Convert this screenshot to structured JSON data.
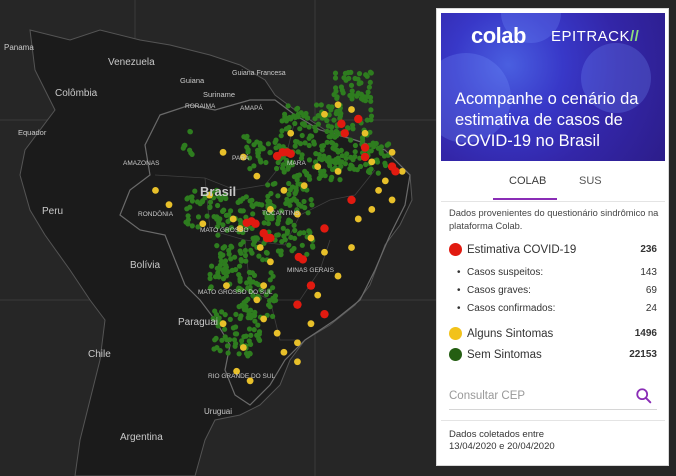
{
  "map": {
    "countries": [
      {
        "key": "panama",
        "label": "Panama"
      },
      {
        "key": "venezuela",
        "label": "Venezuela"
      },
      {
        "key": "guiana",
        "label": "Guiana"
      },
      {
        "key": "guiana_fr",
        "label": "Guiana Francesa"
      },
      {
        "key": "suriname",
        "label": "Suriname"
      },
      {
        "key": "colombia",
        "label": "Colômbia"
      },
      {
        "key": "equador",
        "label": "Equador"
      },
      {
        "key": "brasil",
        "label": "Brasil"
      },
      {
        "key": "peru",
        "label": "Peru"
      },
      {
        "key": "bolivia",
        "label": "Bolívia"
      },
      {
        "key": "paraguai",
        "label": "Paraguai"
      },
      {
        "key": "chile",
        "label": "Chile"
      },
      {
        "key": "uruguai",
        "label": "Uruguai"
      },
      {
        "key": "argentina",
        "label": "Argentina"
      }
    ],
    "states": [
      {
        "key": "roraima",
        "label": "RORAIMA"
      },
      {
        "key": "amapa",
        "label": "AMAPÁ"
      },
      {
        "key": "amazonas",
        "label": "AMAZONAS"
      },
      {
        "key": "para",
        "label": "PARÁ"
      },
      {
        "key": "maranhao",
        "label": "MARA"
      },
      {
        "key": "tocantins",
        "label": "TOCANTINS"
      },
      {
        "key": "rondonia",
        "label": "RONDÔNIA"
      },
      {
        "key": "mato_grosso",
        "label": "MATO GROSSO"
      },
      {
        "key": "minas",
        "label": "MINAS GERAIS"
      },
      {
        "key": "mato_grosso_sul",
        "label": "MATO GROSSO DO SUL"
      },
      {
        "key": "rio_grande",
        "label": "RIO GRANDE DO SUL"
      }
    ],
    "colors": {
      "background": "#262626",
      "land": "#1c1c1c",
      "border": "#5a5a5a",
      "green": "#2e7d1f",
      "yellow": "#e8c02a",
      "red": "#e11a10"
    },
    "markers": {
      "red": [
        [
          0.418,
          0.32
        ],
        [
          0.425,
          0.32
        ],
        [
          0.43,
          0.323
        ],
        [
          0.41,
          0.328
        ],
        [
          0.39,
          0.49
        ],
        [
          0.395,
          0.5
        ],
        [
          0.4,
          0.5
        ],
        [
          0.365,
          0.468
        ],
        [
          0.372,
          0.465
        ],
        [
          0.378,
          0.47
        ],
        [
          0.442,
          0.54
        ],
        [
          0.448,
          0.545
        ],
        [
          0.48,
          0.66
        ],
        [
          0.54,
          0.33
        ],
        [
          0.54,
          0.31
        ],
        [
          0.58,
          0.35
        ],
        [
          0.585,
          0.36
        ],
        [
          0.505,
          0.26
        ],
        [
          0.51,
          0.28
        ],
        [
          0.53,
          0.25
        ],
        [
          0.52,
          0.42
        ],
        [
          0.48,
          0.48
        ],
        [
          0.46,
          0.6
        ],
        [
          0.44,
          0.64
        ]
      ],
      "yellow": [
        [
          0.31,
          0.41
        ],
        [
          0.3,
          0.47
        ],
        [
          0.355,
          0.48
        ],
        [
          0.385,
          0.52
        ],
        [
          0.4,
          0.44
        ],
        [
          0.42,
          0.4
        ],
        [
          0.45,
          0.39
        ],
        [
          0.47,
          0.35
        ],
        [
          0.5,
          0.36
        ],
        [
          0.55,
          0.34
        ],
        [
          0.57,
          0.38
        ],
        [
          0.58,
          0.32
        ],
        [
          0.54,
          0.28
        ],
        [
          0.52,
          0.23
        ],
        [
          0.5,
          0.22
        ],
        [
          0.48,
          0.24
        ],
        [
          0.43,
          0.28
        ],
        [
          0.44,
          0.45
        ],
        [
          0.46,
          0.5
        ],
        [
          0.4,
          0.55
        ],
        [
          0.39,
          0.6
        ],
        [
          0.38,
          0.63
        ],
        [
          0.39,
          0.67
        ],
        [
          0.41,
          0.7
        ],
        [
          0.42,
          0.74
        ],
        [
          0.44,
          0.76
        ],
        [
          0.46,
          0.68
        ],
        [
          0.47,
          0.62
        ],
        [
          0.48,
          0.53
        ],
        [
          0.5,
          0.58
        ],
        [
          0.52,
          0.52
        ],
        [
          0.53,
          0.46
        ],
        [
          0.55,
          0.44
        ],
        [
          0.56,
          0.4
        ],
        [
          0.58,
          0.42
        ],
        [
          0.595,
          0.36
        ],
        [
          0.44,
          0.72
        ],
        [
          0.36,
          0.73
        ],
        [
          0.35,
          0.78
        ],
        [
          0.37,
          0.8
        ],
        [
          0.33,
          0.68
        ],
        [
          0.335,
          0.6
        ],
        [
          0.345,
          0.46
        ],
        [
          0.25,
          0.43
        ],
        [
          0.23,
          0.4
        ],
        [
          0.33,
          0.32
        ],
        [
          0.36,
          0.33
        ],
        [
          0.38,
          0.37
        ]
      ],
      "green_regions": [
        [
          0.36,
          0.48,
          0.08,
          0.14
        ],
        [
          0.38,
          0.62,
          0.06,
          0.1
        ],
        [
          0.43,
          0.46,
          0.07,
          0.15
        ],
        [
          0.46,
          0.3,
          0.09,
          0.16
        ],
        [
          0.52,
          0.26,
          0.06,
          0.22
        ],
        [
          0.35,
          0.7,
          0.07,
          0.1
        ],
        [
          0.3,
          0.44,
          0.05,
          0.08
        ],
        [
          0.39,
          0.32,
          0.06,
          0.07
        ],
        [
          0.33,
          0.58,
          0.05,
          0.06
        ],
        [
          0.28,
          0.3,
          0.02,
          0.05
        ],
        [
          0.56,
          0.34,
          0.03,
          0.08
        ]
      ]
    }
  },
  "panel": {
    "hero": {
      "logo_colab": "colab",
      "logo_epitrack": "EPITRACK",
      "headline": "Acompanhe o cenário da estimativa de casos de COVID-19 no Brasil",
      "colors": {
        "gradient_start": "#4a5fe0",
        "gradient_end": "#2c1d8a"
      }
    },
    "tabs": [
      {
        "label": "COLAB",
        "active": true
      },
      {
        "label": "SUS",
        "active": false
      }
    ],
    "accent": "#8a2db6",
    "description": "Dados provenientes do questionário sindrômico na plataforma Colab.",
    "estimate": {
      "label": "Estimativa COVID-19",
      "value": "236",
      "color": "#e11a10"
    },
    "sub": [
      {
        "label": "Casos suspeitos:",
        "value": "143"
      },
      {
        "label": "Casos graves:",
        "value": "69"
      },
      {
        "label": "Casos confirmados:",
        "value": "24"
      }
    ],
    "some_symptoms": {
      "label": "Alguns Sintomas",
      "value": "1496",
      "color": "#f2c21a"
    },
    "no_symptoms": {
      "label": "Sem Sintomas",
      "value": "22153",
      "color": "#245e12"
    },
    "search": {
      "placeholder": "Consultar CEP",
      "icon": "search-icon"
    },
    "footer": {
      "line1": "Dados coletados entre",
      "line2": "13/04/2020 e 20/04/2020"
    }
  }
}
